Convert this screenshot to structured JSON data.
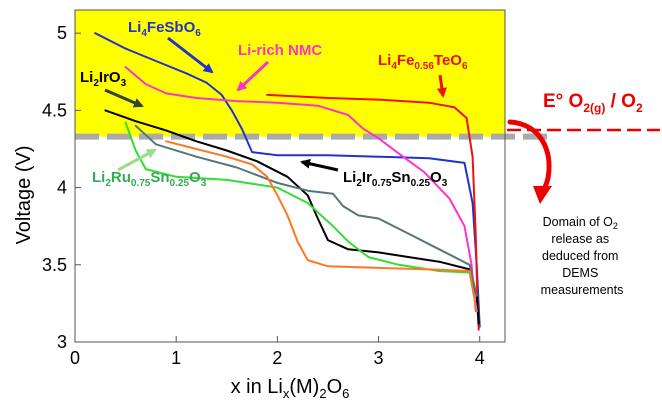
{
  "chart_data": {
    "type": "line",
    "xlabel": {
      "pre": "x in Li",
      "sub1": "x",
      "mid": "(M)",
      "sub2": "2",
      "post": "O",
      "sub3": "6"
    },
    "ylabel": "Voltage (V)",
    "xlim": [
      0,
      4.25
    ],
    "ylim": [
      3,
      5.15
    ],
    "xticks": [
      "0",
      "1",
      "2",
      "3",
      "4"
    ],
    "yticks": [
      "3",
      "3.5",
      "4",
      "4.5",
      "5"
    ],
    "highlight_region": {
      "y_from": 4.33,
      "y_to": 5.15,
      "color": "#ffff00"
    },
    "reference_line": {
      "y": 4.33,
      "color": "#aaaaaa"
    },
    "series": [
      {
        "color": "#2233cc",
        "points": [
          [
            0.2,
            5.0
          ],
          [
            0.5,
            4.9
          ],
          [
            0.8,
            4.82
          ],
          [
            1.1,
            4.74
          ],
          [
            1.3,
            4.68
          ],
          [
            1.45,
            4.6
          ],
          [
            1.55,
            4.5
          ],
          [
            1.65,
            4.38
          ],
          [
            1.75,
            4.23
          ],
          [
            2.0,
            4.21
          ],
          [
            2.5,
            4.21
          ],
          [
            3.0,
            4.2
          ],
          [
            3.5,
            4.19
          ],
          [
            3.85,
            4.16
          ],
          [
            3.93,
            3.9
          ],
          [
            3.97,
            3.5
          ],
          [
            4.0,
            3.1
          ]
        ]
      },
      {
        "color": "#ff33cc",
        "points": [
          [
            0.5,
            4.78
          ],
          [
            0.7,
            4.67
          ],
          [
            0.9,
            4.61
          ],
          [
            1.2,
            4.58
          ],
          [
            1.6,
            4.56
          ],
          [
            2.0,
            4.55
          ],
          [
            2.4,
            4.53
          ],
          [
            2.7,
            4.47
          ],
          [
            2.85,
            4.38
          ],
          [
            3.0,
            4.32
          ],
          [
            3.2,
            4.22
          ],
          [
            3.45,
            4.1
          ],
          [
            3.7,
            3.93
          ],
          [
            3.85,
            3.75
          ],
          [
            3.92,
            3.5
          ],
          [
            3.96,
            3.2
          ]
        ]
      },
      {
        "color": "#ee1111",
        "points": [
          [
            1.9,
            4.6
          ],
          [
            2.5,
            4.58
          ],
          [
            3.0,
            4.57
          ],
          [
            3.5,
            4.55
          ],
          [
            3.75,
            4.52
          ],
          [
            3.87,
            4.45
          ],
          [
            3.93,
            4.2
          ],
          [
            3.96,
            3.7
          ],
          [
            3.98,
            3.2
          ],
          [
            3.99,
            3.08
          ]
        ]
      },
      {
        "color": "#000000",
        "points": [
          [
            0.3,
            4.5
          ],
          [
            0.6,
            4.43
          ],
          [
            0.9,
            4.37
          ],
          [
            1.2,
            4.3
          ],
          [
            1.5,
            4.24
          ],
          [
            1.8,
            4.17
          ],
          [
            2.1,
            4.07
          ],
          [
            2.3,
            3.95
          ],
          [
            2.4,
            3.8
          ],
          [
            2.5,
            3.66
          ],
          [
            2.7,
            3.6
          ],
          [
            3.0,
            3.58
          ],
          [
            3.3,
            3.55
          ],
          [
            3.6,
            3.52
          ],
          [
            3.9,
            3.47
          ],
          [
            3.97,
            3.3
          ],
          [
            3.99,
            3.12
          ]
        ]
      },
      {
        "color": "#33dd33",
        "points": [
          [
            0.5,
            4.42
          ],
          [
            0.6,
            4.24
          ],
          [
            0.7,
            4.12
          ],
          [
            1.0,
            4.07
          ],
          [
            1.5,
            4.05
          ],
          [
            2.0,
            4.0
          ],
          [
            2.3,
            3.9
          ],
          [
            2.55,
            3.75
          ],
          [
            2.7,
            3.65
          ],
          [
            2.9,
            3.55
          ],
          [
            3.2,
            3.5
          ],
          [
            3.6,
            3.46
          ],
          [
            3.9,
            3.45
          ],
          [
            3.97,
            3.2
          ]
        ]
      },
      {
        "color": "#557777",
        "points": [
          [
            0.6,
            4.4
          ],
          [
            0.8,
            4.28
          ],
          [
            1.2,
            4.2
          ],
          [
            1.6,
            4.13
          ],
          [
            2.0,
            4.03
          ],
          [
            2.3,
            3.98
          ],
          [
            2.55,
            3.96
          ],
          [
            2.65,
            3.88
          ],
          [
            2.8,
            3.82
          ],
          [
            3.0,
            3.8
          ],
          [
            3.3,
            3.7
          ],
          [
            3.6,
            3.6
          ],
          [
            3.9,
            3.5
          ],
          [
            3.97,
            3.3
          ]
        ]
      },
      {
        "color": "#ff7722",
        "points": [
          [
            0.9,
            4.3
          ],
          [
            1.2,
            4.25
          ],
          [
            1.5,
            4.2
          ],
          [
            1.75,
            4.15
          ],
          [
            1.9,
            4.07
          ],
          [
            2.0,
            3.95
          ],
          [
            2.1,
            3.82
          ],
          [
            2.2,
            3.65
          ],
          [
            2.3,
            3.53
          ],
          [
            2.5,
            3.49
          ],
          [
            3.0,
            3.48
          ],
          [
            3.5,
            3.47
          ],
          [
            3.9,
            3.46
          ],
          [
            3.97,
            3.2
          ]
        ]
      }
    ],
    "annotations": [
      {
        "pre": "Li",
        "sub1": "4",
        "mid": "FeSbO",
        "sub2": "6",
        "color": "#2233cc"
      },
      {
        "pre": "Li-rich NMC",
        "color": "#ff33cc"
      },
      {
        "pre": "Li",
        "sub1": "4",
        "mid": "Fe",
        "sub2": "0.56",
        "post": "TeO",
        "sub3": "6",
        "color": "#ee1111"
      },
      {
        "pre": "Li",
        "sub1": "2",
        "mid": "IrO",
        "sub2": "3",
        "color": "#000000"
      },
      {
        "pre": "Li",
        "sub1": "2",
        "mid": "Ru",
        "sub2": "0.75",
        "post": "Sn",
        "sub3": "0.25",
        "post2": "O",
        "sub4": "3",
        "color": "#33aa55"
      },
      {
        "pre": "Li",
        "sub1": "2",
        "mid": "Ir",
        "sub2": "0.75",
        "post": "Sn",
        "sub3": "0.25",
        "post2": "O",
        "sub4": "3",
        "color": "#000000"
      }
    ],
    "reference_label": {
      "pre": "E° O",
      "sub1": "2(g)",
      "post": " / O",
      "sub2": "2",
      "color": "#ee0000"
    },
    "domain_note": {
      "lines": [
        "Domain of O",
        "release as",
        "deduced from",
        "DEMS",
        "measurements"
      ],
      "sub": "2"
    }
  }
}
